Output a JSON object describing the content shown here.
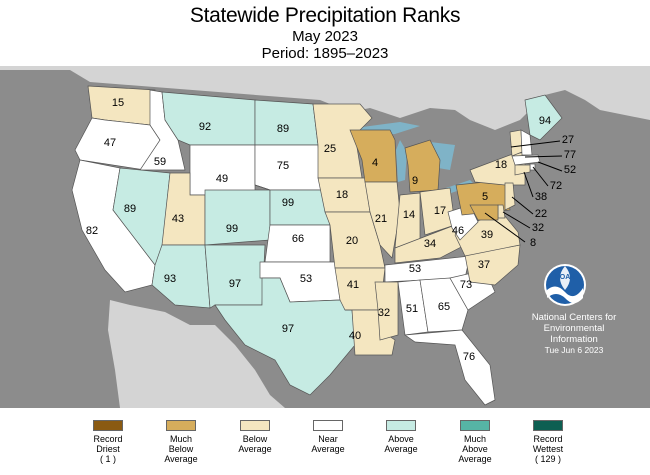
{
  "title": "Statewide Precipitation Ranks",
  "subtitle": "May 2023",
  "period": "Period: 1895–2023",
  "noaa_logo": "NOAA",
  "credit": {
    "line1": "National Centers for",
    "line2": "Environmental",
    "line3": "Information",
    "date": "Tue Jun  6 2023"
  },
  "categories": {
    "record_driest": {
      "label1": "Record",
      "label2": "Driest",
      "label3": "( 1 )",
      "color": "#8a5a12"
    },
    "much_below": {
      "label1": "Much",
      "label2": "Below",
      "label3": "Average",
      "color": "#d6ad5c"
    },
    "below": {
      "label1": "Below",
      "label2": "Average",
      "color": "#f4e6c0"
    },
    "near": {
      "label1": "Near",
      "label2": "Average",
      "color": "#ffffff"
    },
    "above": {
      "label1": "Above",
      "label2": "Average",
      "color": "#c6ebe3"
    },
    "much_above": {
      "label1": "Much",
      "label2": "Above",
      "label3": "Average",
      "color": "#56b4a5"
    },
    "record_wettest": {
      "label1": "Record",
      "label2": "Wettest",
      "label3": "( 129 )",
      "color": "#0d5f52"
    }
  },
  "ranks": {
    "WA": "15",
    "OR": "47",
    "CA": "82",
    "ID": "59",
    "NV": "89",
    "MT": "92",
    "WY": "49",
    "UT": "43",
    "AZ": "93",
    "CO": "99",
    "NM": "97",
    "ND": "89",
    "SD": "75",
    "NE": "99",
    "KS": "66",
    "OK": "53",
    "TX": "97",
    "MN": "25",
    "IA": "18",
    "MO": "20",
    "AR": "41",
    "LA": "40",
    "WI": "4",
    "IL": "21",
    "MI": "9",
    "IN": "14",
    "OH": "17",
    "KY": "34",
    "TN": "53",
    "MS": "32",
    "AL": "51",
    "GA": "65",
    "FL": "76",
    "SC": "73",
    "NC": "37",
    "VA": "39",
    "WV": "46",
    "PA": "5",
    "NY": "18",
    "ME": "94",
    "VT": "27",
    "NH": "77",
    "MA": "52",
    "RI": "72",
    "CT": "38",
    "NJ": "22",
    "DE": "32",
    "MD": "8"
  }
}
